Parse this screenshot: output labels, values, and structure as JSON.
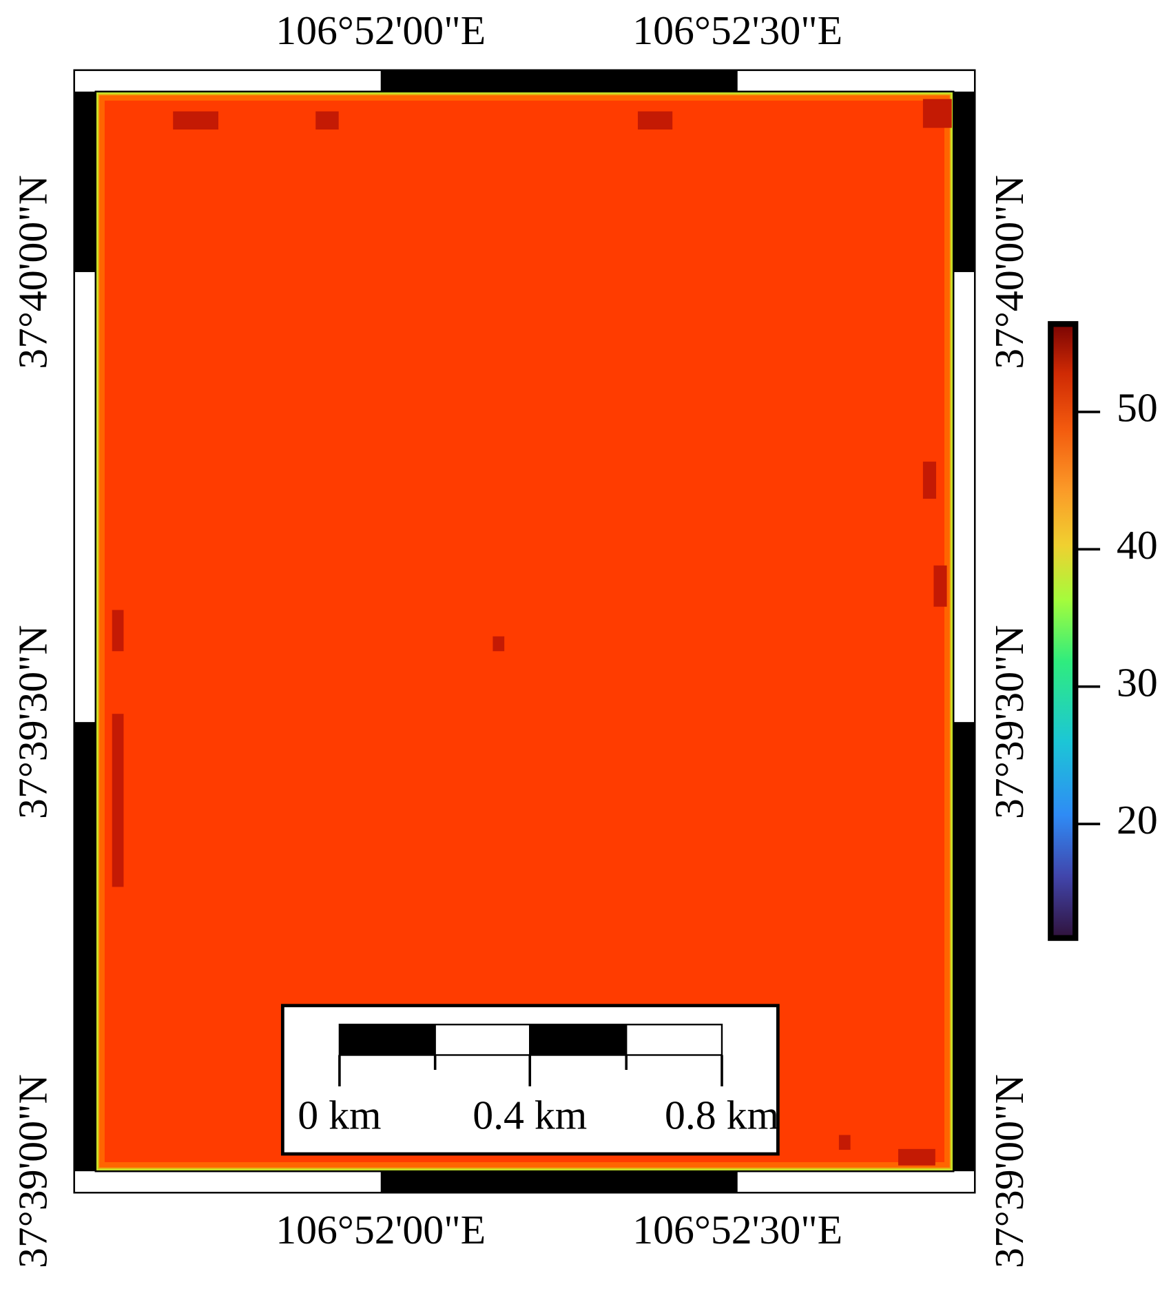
{
  "map": {
    "x_labels": [
      "106°52'00\"E",
      "106°52'30\"E"
    ],
    "y_labels": [
      "37°40'00\"N",
      "37°39'30\"N",
      "37°39'00\"N"
    ]
  },
  "colorbar": {
    "lim": [
      11.7,
      56.4
    ],
    "ticks": [
      20,
      30,
      40,
      50
    ]
  },
  "scale_bar": {
    "labels": [
      "0 km",
      "0.4 km",
      "0.8 km"
    ]
  }
}
